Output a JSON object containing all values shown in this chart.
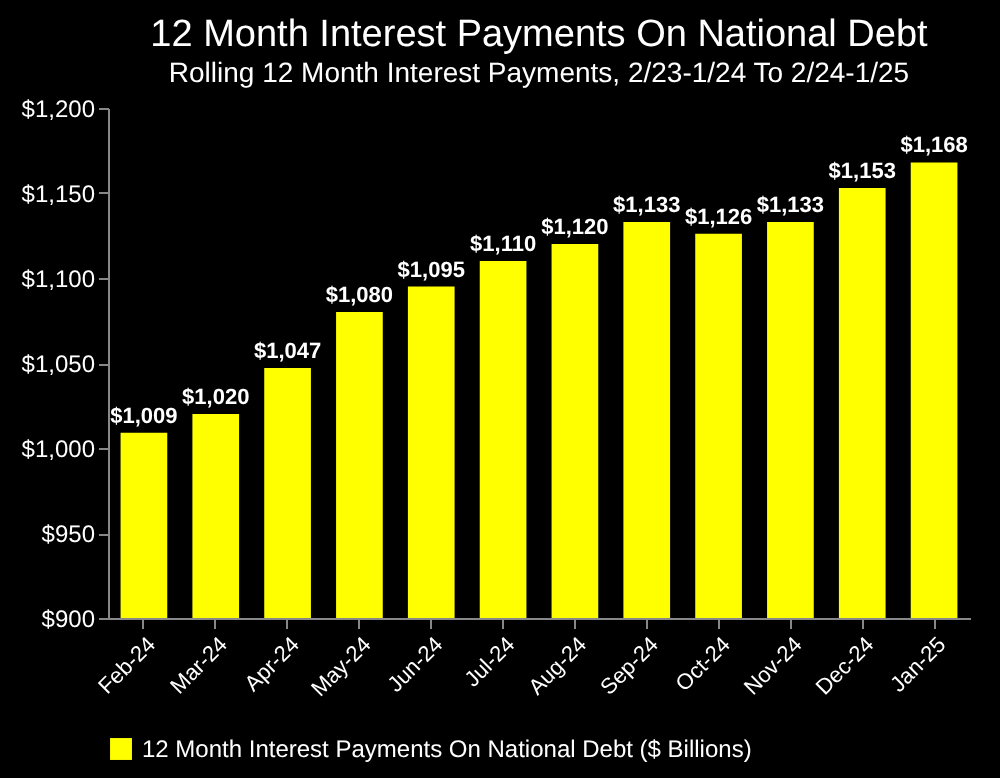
{
  "chart_data": {
    "type": "bar",
    "title": "12 Month Interest Payments On National Debt",
    "subtitle": "Rolling 12 Month Interest Payments, 2/23-1/24 To 2/24-1/25",
    "categories": [
      "Feb-24",
      "Mar-24",
      "Apr-24",
      "May-24",
      "Jun-24",
      "Jul-24",
      "Aug-24",
      "Sep-24",
      "Oct-24",
      "Nov-24",
      "Dec-24",
      "Jan-25"
    ],
    "series": [
      {
        "name": "12 Month Interest Payments On National Debt ($ Billions)",
        "color": "#ffff00",
        "values": [
          1009,
          1020,
          1047,
          1080,
          1095,
          1110,
          1120,
          1133,
          1126,
          1133,
          1153,
          1168
        ],
        "value_labels": [
          "$1,009",
          "$1,020",
          "$1,047",
          "$1,080",
          "$1,095",
          "$1,110",
          "$1,120",
          "$1,133",
          "$1,126",
          "$1,133",
          "$1,153",
          "$1,168"
        ]
      }
    ],
    "ylim": [
      900,
      1200
    ],
    "yticks": [
      {
        "value": 900,
        "label": "$900"
      },
      {
        "value": 950,
        "label": "$950"
      },
      {
        "value": 1000,
        "label": "$1,000"
      },
      {
        "value": 1050,
        "label": "$1,050"
      },
      {
        "value": 1100,
        "label": "$1,100"
      },
      {
        "value": 1150,
        "label": "$1,150"
      },
      {
        "value": 1200,
        "label": "$1,200"
      }
    ],
    "grid": false,
    "legend": "bottom"
  }
}
